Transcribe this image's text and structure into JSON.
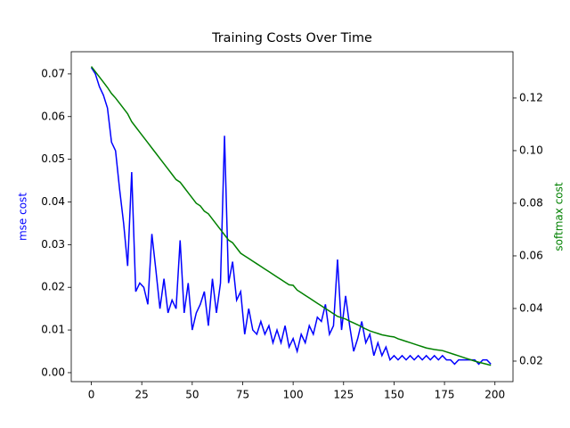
{
  "chart_data": {
    "type": "line",
    "title": "Training Costs Over Time",
    "y_label": "mse cost",
    "y2_label": "softmax cost",
    "x": [
      0,
      2,
      4,
      6,
      8,
      10,
      12,
      14,
      16,
      18,
      20,
      22,
      24,
      26,
      28,
      30,
      32,
      34,
      36,
      38,
      40,
      42,
      44,
      46,
      48,
      50,
      52,
      54,
      56,
      58,
      60,
      62,
      64,
      66,
      68,
      70,
      72,
      74,
      76,
      78,
      80,
      82,
      84,
      86,
      88,
      90,
      92,
      94,
      96,
      98,
      100,
      102,
      104,
      106,
      108,
      110,
      112,
      114,
      116,
      118,
      120,
      122,
      124,
      126,
      128,
      130,
      132,
      134,
      136,
      138,
      140,
      142,
      144,
      146,
      148,
      150,
      152,
      154,
      156,
      158,
      160,
      162,
      164,
      166,
      168,
      170,
      172,
      174,
      176,
      178,
      180,
      182,
      184,
      186,
      188,
      190,
      192,
      194,
      196,
      198
    ],
    "series": [
      {
        "name": "mse cost",
        "color": "#0000ff",
        "values": [
          0.0715,
          0.07,
          0.067,
          0.065,
          0.062,
          0.054,
          0.052,
          0.043,
          0.035,
          0.025,
          0.047,
          0.019,
          0.021,
          0.02,
          0.016,
          0.0325,
          0.024,
          0.015,
          0.022,
          0.014,
          0.017,
          0.015,
          0.031,
          0.014,
          0.021,
          0.01,
          0.014,
          0.016,
          0.019,
          0.011,
          0.022,
          0.014,
          0.021,
          0.0555,
          0.021,
          0.026,
          0.017,
          0.019,
          0.009,
          0.015,
          0.01,
          0.009,
          0.012,
          0.009,
          0.011,
          0.007,
          0.01,
          0.007,
          0.011,
          0.006,
          0.008,
          0.005,
          0.009,
          0.007,
          0.011,
          0.009,
          0.013,
          0.012,
          0.016,
          0.009,
          0.011,
          0.0265,
          0.01,
          0.018,
          0.011,
          0.005,
          0.008,
          0.012,
          0.007,
          0.009,
          0.004,
          0.007,
          0.004,
          0.006,
          0.003,
          0.004,
          0.003,
          0.004,
          0.003,
          0.004,
          0.003,
          0.004,
          0.003,
          0.004,
          0.003,
          0.004,
          0.003,
          0.004,
          0.003,
          0.003,
          0.002,
          0.003,
          0.003,
          0.003,
          0.003,
          0.003,
          0.002,
          0.003,
          0.003,
          0.002
        ]
      },
      {
        "name": "softmax cost",
        "color": "#008000",
        "axis": "y2",
        "values": [
          0.132,
          0.13,
          0.128,
          0.126,
          0.124,
          0.1217,
          0.12,
          0.118,
          0.116,
          0.114,
          0.111,
          0.109,
          0.107,
          0.105,
          0.103,
          0.101,
          0.099,
          0.097,
          0.095,
          0.093,
          0.091,
          0.089,
          0.088,
          0.086,
          0.084,
          0.082,
          0.08,
          0.079,
          0.077,
          0.076,
          0.074,
          0.072,
          0.07,
          0.068,
          0.066,
          0.065,
          0.063,
          0.061,
          0.06,
          0.059,
          0.058,
          0.057,
          0.056,
          0.055,
          0.054,
          0.053,
          0.052,
          0.051,
          0.05,
          0.049,
          0.0488,
          0.047,
          0.046,
          0.045,
          0.044,
          0.043,
          0.042,
          0.041,
          0.04,
          0.039,
          0.038,
          0.037,
          0.0365,
          0.036,
          0.0352,
          0.0345,
          0.0338,
          0.033,
          0.0322,
          0.0315,
          0.031,
          0.0305,
          0.03,
          0.0297,
          0.0294,
          0.0292,
          0.0285,
          0.028,
          0.0275,
          0.027,
          0.0265,
          0.026,
          0.0255,
          0.025,
          0.0247,
          0.0244,
          0.0242,
          0.024,
          0.0235,
          0.023,
          0.0225,
          0.022,
          0.0215,
          0.021,
          0.0205,
          0.02,
          0.0196,
          0.0192,
          0.0188,
          0.0184
        ]
      }
    ],
    "xlim": [
      -9.95,
      208.95
    ],
    "xticks": [
      0,
      25,
      50,
      75,
      100,
      125,
      150,
      175,
      200
    ],
    "ylim": [
      -0.0021,
      0.0752
    ],
    "yticks": [
      {
        "value": 0,
        "label": "0.00"
      },
      0.01,
      0.02,
      0.03,
      0.04,
      0.05,
      0.06,
      0.07
    ],
    "y2lim": [
      0.0122,
      0.1376
    ],
    "y2ticks": [
      0.02,
      0.04,
      0.06,
      0.08,
      {
        "value": 0.1,
        "label": "0.10"
      },
      0.12
    ]
  }
}
